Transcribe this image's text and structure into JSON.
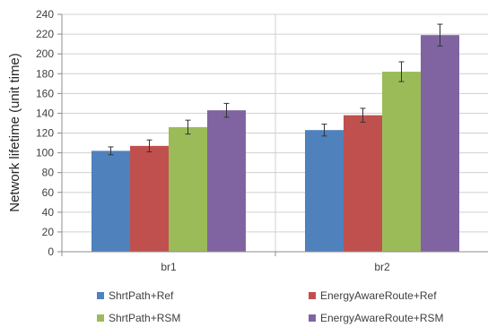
{
  "chart_data": {
    "type": "bar",
    "title": "",
    "xlabel": "",
    "ylabel": "Network lifetime (unit time)",
    "ylim": [
      0,
      240
    ],
    "yticks": [
      0,
      20,
      40,
      60,
      80,
      100,
      120,
      140,
      160,
      180,
      200,
      220,
      240
    ],
    "categories": [
      "br1",
      "br2"
    ],
    "grid": "horizontal",
    "legend_position": "bottom",
    "series": [
      {
        "name": "ShrtPath+Ref",
        "color": "#4F81BD",
        "values": [
          102,
          123
        ],
        "error": [
          4,
          6
        ]
      },
      {
        "name": "EnergyAwareRoute+Ref",
        "color": "#C0504D",
        "values": [
          107,
          138
        ],
        "error": [
          6,
          7
        ]
      },
      {
        "name": "ShrtPath+RSM",
        "color": "#9BBB59",
        "values": [
          126,
          182
        ],
        "error": [
          7,
          10
        ]
      },
      {
        "name": "EnergyAwareRoute+RSM",
        "color": "#8064A2",
        "values": [
          143,
          219
        ],
        "error": [
          7,
          11
        ]
      }
    ]
  }
}
